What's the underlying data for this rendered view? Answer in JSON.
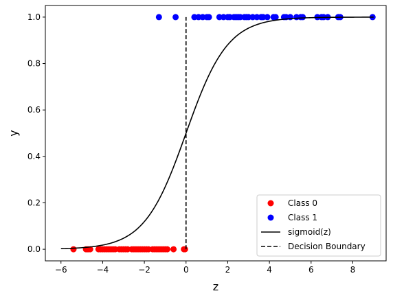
{
  "chart_data": {
    "type": "scatter",
    "title": "",
    "xlabel": "z",
    "ylabel": "y",
    "xlim": [
      -6.75,
      9.6
    ],
    "ylim": [
      -0.05,
      1.05
    ],
    "xticks": [
      -6,
      -4,
      -2,
      0,
      2,
      4,
      6,
      8
    ],
    "xtick_labels": [
      "−6",
      "−4",
      "−2",
      "0",
      "2",
      "4",
      "6",
      "8"
    ],
    "yticks": [
      0.0,
      0.2,
      0.4,
      0.6,
      0.8,
      1.0
    ],
    "ytick_labels": [
      "0.0",
      "0.2",
      "0.4",
      "0.6",
      "0.8",
      "1.0"
    ],
    "grid": false,
    "legend_position": "lower-right",
    "series": [
      {
        "name": "Class 0",
        "kind": "scatter",
        "color": "#ff0000",
        "x": [
          -5.4,
          -4.8,
          -4.7,
          -4.6,
          -4.2,
          -4.1,
          -4.0,
          -3.9,
          -3.8,
          -3.7,
          -3.6,
          -3.5,
          -3.4,
          -3.2,
          -3.1,
          -3.0,
          -2.9,
          -2.8,
          -2.6,
          -2.5,
          -2.4,
          -2.3,
          -2.2,
          -2.1,
          -2.0,
          -1.9,
          -1.8,
          -1.6,
          -1.5,
          -1.4,
          -1.3,
          -1.2,
          -1.1,
          -1.0,
          -0.9,
          -0.6,
          -0.1,
          -0.05
        ],
        "y": [
          0,
          0,
          0,
          0,
          0,
          0,
          0,
          0,
          0,
          0,
          0,
          0,
          0,
          0,
          0,
          0,
          0,
          0,
          0,
          0,
          0,
          0,
          0,
          0,
          0,
          0,
          0,
          0,
          0,
          0,
          0,
          0,
          0,
          0,
          0,
          0,
          0,
          0
        ]
      },
      {
        "name": "Class 1",
        "kind": "scatter",
        "color": "#0000ff",
        "x": [
          -1.3,
          -0.5,
          0.4,
          0.6,
          0.8,
          1.0,
          1.1,
          1.6,
          1.8,
          2.0,
          2.1,
          2.3,
          2.4,
          2.5,
          2.6,
          2.8,
          2.9,
          3.0,
          3.2,
          3.4,
          3.6,
          3.7,
          3.9,
          4.2,
          4.3,
          4.7,
          4.8,
          5.0,
          5.3,
          5.5,
          5.6,
          6.3,
          6.5,
          6.6,
          6.8,
          7.3,
          7.4,
          8.95
        ],
        "y": [
          1,
          1,
          1,
          1,
          1,
          1,
          1,
          1,
          1,
          1,
          1,
          1,
          1,
          1,
          1,
          1,
          1,
          1,
          1,
          1,
          1,
          1,
          1,
          1,
          1,
          1,
          1,
          1,
          1,
          1,
          1,
          1,
          1,
          1,
          1,
          1,
          1,
          1
        ]
      },
      {
        "name": "sigmoid(z)",
        "kind": "line",
        "color": "#000000",
        "style": "solid",
        "function": "sigmoid",
        "x_range": [
          -6,
          9
        ]
      },
      {
        "name": "Decision Boundary",
        "kind": "line",
        "color": "#000000",
        "style": "dashed",
        "x": [
          0,
          0
        ],
        "y": [
          0,
          1
        ]
      }
    ]
  }
}
